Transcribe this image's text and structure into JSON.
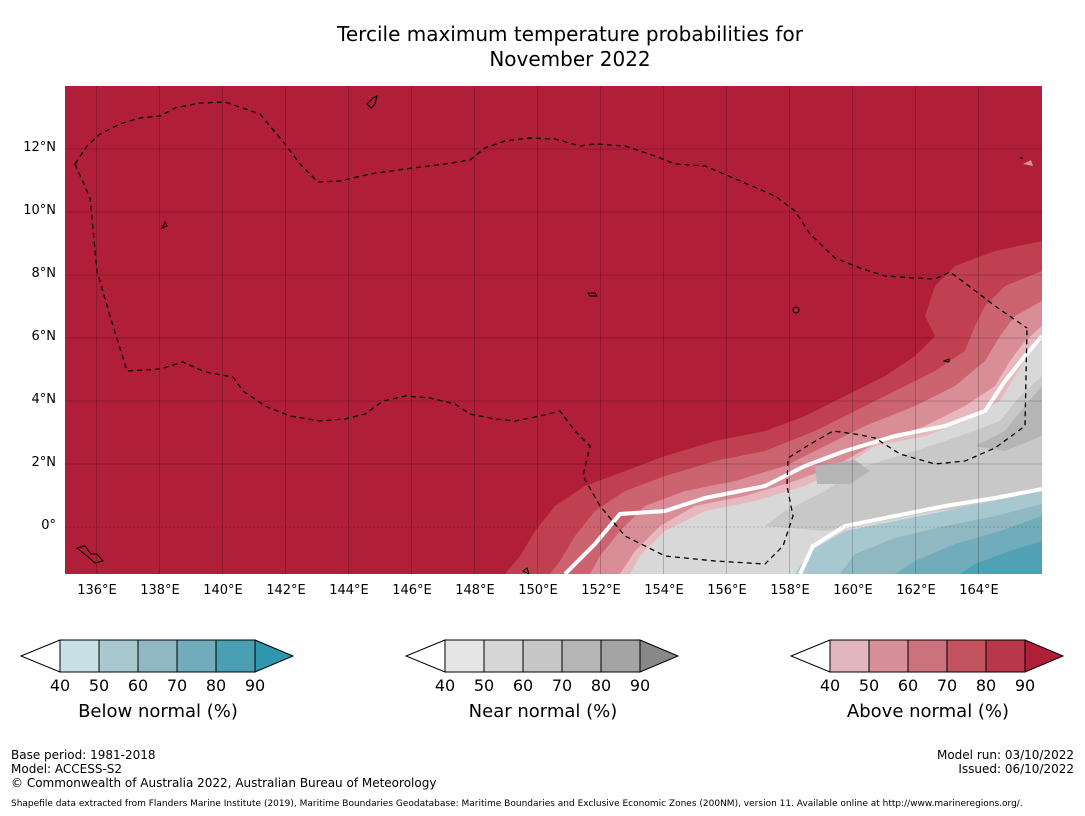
{
  "title": {
    "line1": "Tercile maximum temperature probabilities for",
    "line2": "November 2022"
  },
  "map": {
    "lat_labels": [
      "12°N",
      "10°N",
      "8°N",
      "6°N",
      "4°N",
      "2°N",
      "0°"
    ],
    "lon_labels": [
      "136°E",
      "138°E",
      "140°E",
      "142°E",
      "144°E",
      "146°E",
      "148°E",
      "150°E",
      "152°E",
      "154°E",
      "156°E",
      "158°E",
      "160°E",
      "162°E",
      "164°E"
    ],
    "extent": {
      "lon_min": 135.0,
      "lon_max": 166.0,
      "lat_min": -1.5,
      "lat_max": 14.0
    },
    "colors": {
      "above_90": "#b01e38",
      "above_80": "#c0404f",
      "above_70": "#cc6470",
      "above_60": "#d98e97",
      "above_50": "#e8b8bf",
      "near_50": "#d8d8d8",
      "near_60": "#c8c8c8",
      "near_70": "#b5b5b5",
      "below_50": "#a8c8d0",
      "below_60": "#8fb8c3",
      "below_70": "#70acbb",
      "below_80": "#4fa1b3"
    }
  },
  "colorbars": [
    {
      "label": "Below normal (%)",
      "ticks": [
        "40",
        "50",
        "60",
        "70",
        "80",
        "90"
      ],
      "colors": [
        "#ffffff",
        "#c8e0e6",
        "#a8c8d0",
        "#8fb8c3",
        "#70acbb",
        "#4aa0b2",
        "#2e97ad"
      ]
    },
    {
      "label": "Near normal (%)",
      "ticks": [
        "40",
        "50",
        "60",
        "70",
        "80",
        "90"
      ],
      "colors": [
        "#ffffff",
        "#e5e5e5",
        "#d6d6d6",
        "#c6c6c6",
        "#b5b5b5",
        "#a4a4a4",
        "#888888"
      ]
    },
    {
      "label": "Above normal (%)",
      "ticks": [
        "40",
        "50",
        "60",
        "70",
        "80",
        "90"
      ],
      "colors": [
        "#ffffff",
        "#e2b6bd",
        "#d68f98",
        "#cc727c",
        "#c45460",
        "#b9374a",
        "#b01e38"
      ]
    }
  ],
  "footer": {
    "base_period": "Base period: 1981-2018",
    "model": "Model: ACCESS-S2",
    "copyright": "© Commonwealth of Australia 2022, Australian Bureau of Meteorology",
    "model_run": "Model run: 03/10/2022",
    "issued": "Issued: 06/10/2022",
    "shapefile": "Shapefile data extracted from Flanders Marine Institute (2019), Maritime Boundaries Geodatabase: Maritime Boundaries and Exclusive Economic Zones (200NM), version 11. Available online at http://www.marineregions.org/."
  }
}
